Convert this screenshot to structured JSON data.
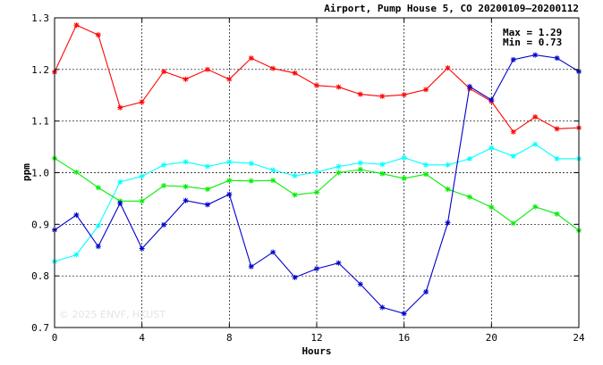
{
  "chart_data": {
    "type": "line",
    "title": "Airport, Pump House 5, CO 20200109–20200112",
    "xlabel": "Hours",
    "ylabel": "ppm",
    "xlim": [
      0,
      24
    ],
    "ylim": [
      0.7,
      1.3
    ],
    "xticks": [
      0,
      4,
      8,
      12,
      16,
      20,
      24
    ],
    "yticks": [
      0.7,
      0.8,
      0.9,
      1.0,
      1.1,
      1.2,
      1.3
    ],
    "ytick_labels": [
      "0.7",
      "0.8",
      "0.9",
      "1.0",
      "1.1",
      "1.2",
      "1.3"
    ],
    "grid": true,
    "stats": {
      "max": "Max = 1.29",
      "min": "Min = 0.73"
    },
    "watermark": "© 2025  ENVF, HKUST",
    "x": [
      0,
      1,
      2,
      3,
      4,
      5,
      6,
      7,
      8,
      9,
      10,
      11,
      12,
      13,
      14,
      15,
      16,
      17,
      18,
      19,
      20,
      21,
      22,
      23,
      24
    ],
    "series": [
      {
        "color": "#ff0000",
        "values": [
          1.195,
          1.286,
          1.267,
          1.126,
          1.137,
          1.196,
          1.181,
          1.2,
          1.181,
          1.222,
          1.202,
          1.193,
          1.169,
          1.166,
          1.152,
          1.148,
          1.151,
          1.161,
          1.203,
          1.163,
          1.138,
          1.079,
          1.108,
          1.085,
          1.087
        ]
      },
      {
        "color": "#00ffff",
        "values": [
          0.828,
          0.841,
          0.897,
          0.982,
          0.993,
          1.015,
          1.021,
          1.012,
          1.021,
          1.018,
          1.005,
          0.994,
          1.001,
          1.012,
          1.019,
          1.016,
          1.029,
          1.015,
          1.015,
          1.027,
          1.048,
          1.032,
          1.055,
          1.027,
          1.027
        ]
      },
      {
        "color": "#00ee00",
        "values": [
          1.028,
          1.001,
          0.971,
          0.945,
          0.945,
          0.975,
          0.973,
          0.968,
          0.985,
          0.984,
          0.985,
          0.957,
          0.962,
          1.0,
          1.006,
          0.998,
          0.989,
          0.997,
          0.968,
          0.953,
          0.933,
          0.902,
          0.934,
          0.92,
          0.888
        ]
      },
      {
        "color": "#0000cc",
        "values": [
          0.889,
          0.918,
          0.857,
          0.941,
          0.853,
          0.899,
          0.946,
          0.938,
          0.958,
          0.818,
          0.846,
          0.797,
          0.814,
          0.825,
          0.784,
          0.739,
          0.727,
          0.769,
          0.903,
          1.167,
          1.141,
          1.219,
          1.228,
          1.222,
          1.196
        ]
      }
    ]
  }
}
